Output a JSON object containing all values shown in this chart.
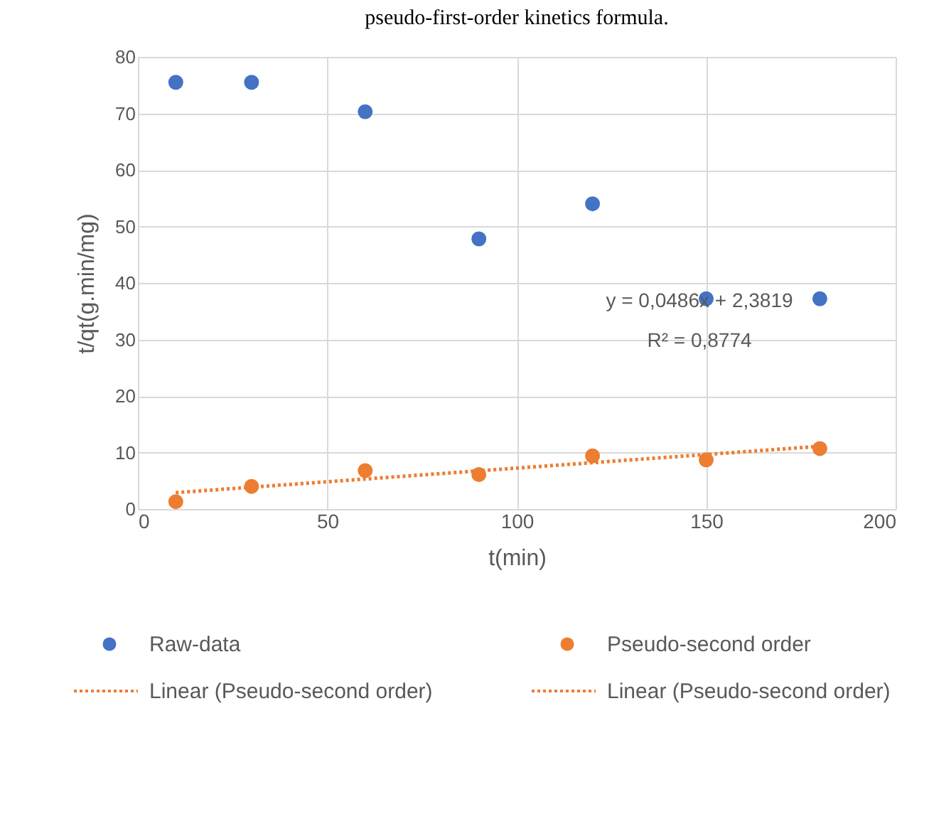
{
  "chart_data": {
    "type": "scatter",
    "xlabel": "t(min)",
    "ylabel": "t/qt(g.min/mg)",
    "x": [
      10,
      30,
      60,
      90,
      120,
      150,
      180
    ],
    "series": [
      {
        "name": "Raw-data",
        "color": "#4472c4",
        "marker": "circle",
        "values": [
          75.5,
          75.5,
          70.3,
          47.8,
          54.0,
          37.2,
          37.2
        ]
      },
      {
        "name": "Pseudo-second order",
        "color": "#ed7d31",
        "marker": "circle",
        "values": [
          1.3,
          4.0,
          6.8,
          6.1,
          9.4,
          8.7,
          10.7
        ]
      },
      {
        "name": "Linear (Pseudo-second order)",
        "type": "line",
        "line_style": "dotted",
        "marker": "none",
        "color": "#ed7d31",
        "x": [
          10,
          180
        ],
        "values": [
          2.9,
          11.1
        ]
      }
    ],
    "xlim": [
      0,
      200
    ],
    "xticks": [
      0,
      50,
      100,
      150,
      200
    ],
    "ylim": [
      0,
      80
    ],
    "yticks": [
      0,
      10,
      20,
      30,
      40,
      50,
      60,
      70,
      80
    ],
    "grid": true,
    "legend": "bottom",
    "annotations": [
      "pseudo-first-order kinetics formula.",
      "y = 0,0486x + 2,3819",
      "R² = 0,8774",
      "Linear (Pseudo-second order)"
    ]
  }
}
